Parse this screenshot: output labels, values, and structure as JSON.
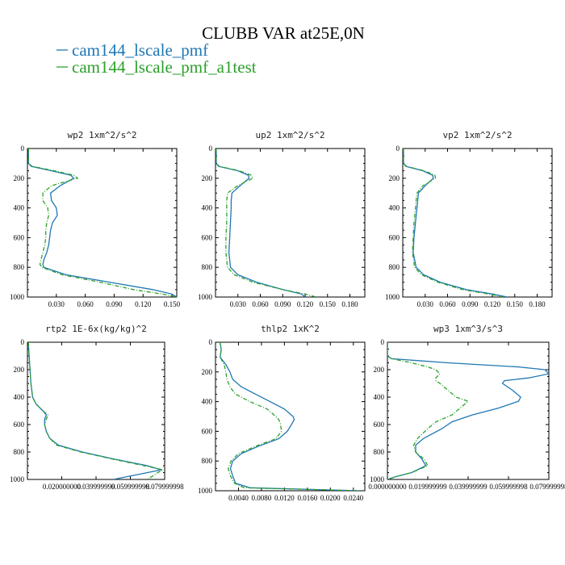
{
  "figure": {
    "title": "CLUBB VAR at25E,0N",
    "legend": [
      {
        "label": "cam144_lscale_pmf",
        "color": "#1f77b4",
        "dash": "solid"
      },
      {
        "label": "cam144_lscale_pmf_a1test",
        "color": "#2ca02c",
        "dash": "dashdot"
      }
    ]
  },
  "chart_data": [
    {
      "type": "line",
      "title": "wp2  1xm^2/s^2",
      "xlim": [
        0,
        0.155
      ],
      "ylim": [
        1000,
        0
      ],
      "yticks": [
        "0",
        "200",
        "400",
        "600",
        "800",
        "1000"
      ],
      "xticks": [
        "0.030",
        "0.060",
        "0.090",
        "0.120",
        "0.150"
      ],
      "xtick_values": [
        0.03,
        0.06,
        0.09,
        0.12,
        0.15
      ],
      "y": [
        0,
        100,
        120,
        150,
        180,
        200,
        250,
        300,
        350,
        400,
        450,
        500,
        550,
        600,
        650,
        700,
        750,
        780,
        800,
        850,
        900,
        950,
        980,
        1000
      ],
      "series": [
        {
          "name": "cam144_lscale_pmf",
          "values": [
            0.001,
            0.001,
            0.004,
            0.025,
            0.045,
            0.048,
            0.034,
            0.024,
            0.025,
            0.03,
            0.031,
            0.026,
            0.024,
            0.023,
            0.022,
            0.02,
            0.017,
            0.016,
            0.017,
            0.04,
            0.085,
            0.13,
            0.15,
            0.155
          ]
        },
        {
          "name": "cam144_lscale_pmf_a1test",
          "values": [
            0.001,
            0.001,
            0.005,
            0.028,
            0.048,
            0.052,
            0.025,
            0.016,
            0.016,
            0.021,
            0.022,
            0.02,
            0.019,
            0.019,
            0.018,
            0.016,
            0.014,
            0.013,
            0.015,
            0.036,
            0.075,
            0.11,
            0.14,
            0.155
          ]
        }
      ]
    },
    {
      "type": "line",
      "title": "up2  1xm^2/s^2",
      "xlim": [
        0,
        0.2
      ],
      "ylim": [
        1000,
        0
      ],
      "yticks": [
        "0",
        "200",
        "400",
        "600",
        "800",
        "1000"
      ],
      "xticks": [
        "0.030",
        "0.060",
        "0.090",
        "0.120",
        "0.150",
        "0.180"
      ],
      "xtick_values": [
        0.03,
        0.06,
        0.09,
        0.12,
        0.15,
        0.18
      ],
      "y": [
        0,
        100,
        120,
        150,
        180,
        200,
        250,
        300,
        350,
        400,
        500,
        600,
        700,
        800,
        850,
        900,
        950,
        980,
        1000
      ],
      "series": [
        {
          "name": "cam144_lscale_pmf",
          "values": [
            0.001,
            0.001,
            0.004,
            0.03,
            0.044,
            0.045,
            0.033,
            0.022,
            0.021,
            0.021,
            0.02,
            0.019,
            0.018,
            0.02,
            0.03,
            0.055,
            0.09,
            0.115,
            0.12
          ]
        },
        {
          "name": "cam144_lscale_pmf_a1test",
          "values": [
            0.001,
            0.001,
            0.005,
            0.032,
            0.048,
            0.05,
            0.03,
            0.016,
            0.015,
            0.015,
            0.015,
            0.014,
            0.014,
            0.016,
            0.025,
            0.05,
            0.09,
            0.12,
            0.135
          ]
        }
      ]
    },
    {
      "type": "line",
      "title": "vp2  1xm^2/s^2",
      "xlim": [
        0,
        0.2
      ],
      "ylim": [
        1000,
        0
      ],
      "yticks": [
        "0",
        "200",
        "400",
        "600",
        "800",
        "1000"
      ],
      "xticks": [
        "0.030",
        "0.060",
        "0.090",
        "0.120",
        "0.150",
        "0.180"
      ],
      "xtick_values": [
        0.03,
        0.06,
        0.09,
        0.12,
        0.15,
        0.18
      ],
      "y": [
        0,
        100,
        120,
        150,
        180,
        200,
        250,
        300,
        350,
        400,
        500,
        600,
        700,
        800,
        850,
        900,
        950,
        980,
        1000
      ],
      "series": [
        {
          "name": "cam144_lscale_pmf",
          "values": [
            0.001,
            0.001,
            0.004,
            0.027,
            0.04,
            0.041,
            0.03,
            0.021,
            0.02,
            0.019,
            0.017,
            0.015,
            0.014,
            0.018,
            0.028,
            0.05,
            0.085,
            0.12,
            0.14
          ]
        },
        {
          "name": "cam144_lscale_pmf_a1test",
          "values": [
            0.001,
            0.001,
            0.005,
            0.029,
            0.043,
            0.044,
            0.027,
            0.019,
            0.018,
            0.017,
            0.015,
            0.014,
            0.013,
            0.016,
            0.025,
            0.047,
            0.08,
            0.115,
            0.135
          ]
        }
      ]
    },
    {
      "type": "line",
      "title": "rtp2  1E-6x(kg/kg)^2",
      "xlim": [
        0,
        0.08
      ],
      "ylim": [
        1000,
        0
      ],
      "yticks": [
        "0",
        "200",
        "400",
        "600",
        "800",
        "1000"
      ],
      "xticks": [
        "0.020000000",
        "0.039999999",
        "0.059999998",
        "0.079999998"
      ],
      "xtick_values": [
        0.02,
        0.04,
        0.06,
        0.08
      ],
      "y": [
        0,
        100,
        200,
        300,
        400,
        450,
        500,
        530,
        560,
        600,
        650,
        700,
        750,
        800,
        850,
        900,
        930,
        950,
        1000
      ],
      "series": [
        {
          "name": "cam144_lscale_pmf",
          "values": [
            0.0005,
            0.001,
            0.0015,
            0.002,
            0.003,
            0.005,
            0.009,
            0.011,
            0.01,
            0.01,
            0.011,
            0.013,
            0.018,
            0.032,
            0.05,
            0.07,
            0.078,
            0.07,
            0.05
          ]
        },
        {
          "name": "cam144_lscale_pmf_a1test",
          "values": [
            0.0005,
            0.001,
            0.0015,
            0.002,
            0.003,
            0.005,
            0.009,
            0.012,
            0.011,
            0.01,
            0.011,
            0.013,
            0.017,
            0.031,
            0.049,
            0.068,
            0.079,
            0.076,
            0.07
          ]
        }
      ]
    },
    {
      "type": "line",
      "title": "thlp2  1xK^2",
      "xlim": [
        0,
        0.026
      ],
      "ylim": [
        1000,
        0
      ],
      "yticks": [
        "0",
        "200",
        "400",
        "600",
        "800",
        "1000"
      ],
      "xticks": [
        "0.0040",
        "0.0080",
        "0.0120",
        "0.0160",
        "0.0200",
        "0.0240"
      ],
      "xtick_values": [
        0.004,
        0.008,
        0.012,
        0.016,
        0.02,
        0.024
      ],
      "y": [
        0,
        50,
        100,
        150,
        200,
        250,
        300,
        350,
        400,
        450,
        500,
        520,
        550,
        600,
        650,
        700,
        750,
        800,
        850,
        900,
        950,
        980,
        1000
      ],
      "series": [
        {
          "name": "cam144_lscale_pmf",
          "values": [
            0.0008,
            0.001,
            0.0008,
            0.0018,
            0.0025,
            0.003,
            0.0045,
            0.007,
            0.0095,
            0.012,
            0.0135,
            0.0137,
            0.0133,
            0.0125,
            0.011,
            0.0075,
            0.0045,
            0.003,
            0.0026,
            0.003,
            0.0035,
            0.006,
            0.025
          ]
        },
        {
          "name": "cam144_lscale_pmf_a1test",
          "values": [
            0.0008,
            0.001,
            0.0008,
            0.0015,
            0.0018,
            0.002,
            0.0025,
            0.0035,
            0.006,
            0.009,
            0.0105,
            0.011,
            0.0113,
            0.0115,
            0.0105,
            0.007,
            0.004,
            0.0027,
            0.0022,
            0.0026,
            0.0033,
            0.005,
            0.025
          ]
        }
      ]
    },
    {
      "type": "line",
      "title": "wp3  1xm^3/s^3",
      "xlim": [
        0,
        0.08
      ],
      "ylim": [
        1000,
        0
      ],
      "yticks": [
        "0",
        "200",
        "400",
        "600",
        "800",
        "1000"
      ],
      "xticks": [
        "0.000000000",
        "0.019999999",
        "0.039999999",
        "0.059999998",
        "0.079999998"
      ],
      "xtick_values": [
        0,
        0.02,
        0.04,
        0.06,
        0.08
      ],
      "y": [
        0,
        100,
        120,
        150,
        180,
        200,
        230,
        260,
        280,
        300,
        350,
        400,
        430,
        480,
        530,
        580,
        630,
        700,
        750,
        800,
        850,
        900,
        950,
        980,
        1000
      ],
      "series": [
        {
          "name": "cam144_lscale_pmf",
          "values": [
            0.0,
            0.0,
            0.002,
            0.03,
            0.065,
            0.078,
            0.08,
            0.07,
            0.058,
            0.057,
            0.062,
            0.066,
            0.065,
            0.055,
            0.042,
            0.032,
            0.027,
            0.018,
            0.014,
            0.014,
            0.017,
            0.019,
            0.012,
            0.004,
            0.0
          ]
        },
        {
          "name": "cam144_lscale_pmf_a1test",
          "values": [
            0.0,
            0.0,
            0.002,
            0.012,
            0.02,
            0.024,
            0.026,
            0.024,
            0.024,
            0.026,
            0.03,
            0.034,
            0.04,
            0.036,
            0.032,
            0.024,
            0.02,
            0.015,
            0.013,
            0.014,
            0.018,
            0.02,
            0.012,
            0.004,
            0.0
          ]
        }
      ]
    }
  ]
}
